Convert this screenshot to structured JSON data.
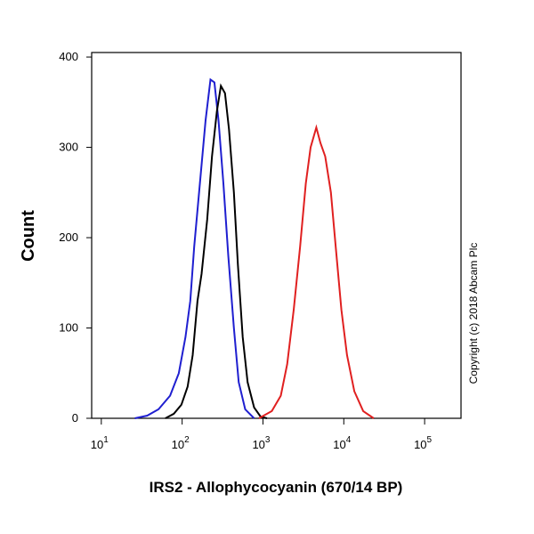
{
  "chart_data": {
    "type": "line",
    "x_scale": "log",
    "ylabel": "Count",
    "xlabel": "IRS2 - Allophycocyanin (670/14 BP)",
    "annotation": "Copyright (c) 2018 Abcam Plc",
    "xlim": [
      7.6,
      282000
    ],
    "ylim": [
      0,
      405
    ],
    "xticks": [
      {
        "value": 10,
        "label": "10",
        "exponent": "1"
      },
      {
        "value": 100,
        "label": "10",
        "exponent": "2"
      },
      {
        "value": 1000,
        "label": "10",
        "exponent": "3"
      },
      {
        "value": 10000,
        "label": "10",
        "exponent": "4"
      },
      {
        "value": 100000,
        "label": "10",
        "exponent": "5"
      }
    ],
    "yticks": [
      0,
      100,
      200,
      300,
      400
    ],
    "series": [
      {
        "color": "#1f1fd0",
        "x": [
          26,
          37,
          51,
          71,
          91,
          110,
          126,
          141,
          166,
          195,
          224,
          251,
          282,
          324,
          372,
          437,
          501,
          603,
          776
        ],
        "values": [
          0,
          3,
          10,
          25,
          50,
          90,
          130,
          190,
          260,
          330,
          375,
          372,
          330,
          260,
          180,
          100,
          40,
          10,
          0
        ]
      },
      {
        "color": "#000000",
        "x": [
          62,
          79,
          98,
          117,
          135,
          155,
          174,
          204,
          234,
          269,
          302,
          339,
          380,
          437,
          490,
          562,
          646,
          776,
          933,
          1122
        ],
        "values": [
          0,
          5,
          15,
          35,
          70,
          130,
          160,
          220,
          290,
          340,
          368,
          360,
          320,
          250,
          170,
          90,
          40,
          12,
          2,
          0
        ]
      },
      {
        "color": "#e02020",
        "x": [
          891,
          1288,
          1660,
          1995,
          2399,
          2884,
          3388,
          3890,
          4571,
          5129,
          5888,
          6918,
          7943,
          9333,
          10965,
          13490,
          17378,
          23442
        ],
        "values": [
          0,
          8,
          25,
          60,
          120,
          190,
          260,
          300,
          322,
          305,
          290,
          250,
          190,
          120,
          70,
          30,
          8,
          0
        ]
      }
    ]
  }
}
